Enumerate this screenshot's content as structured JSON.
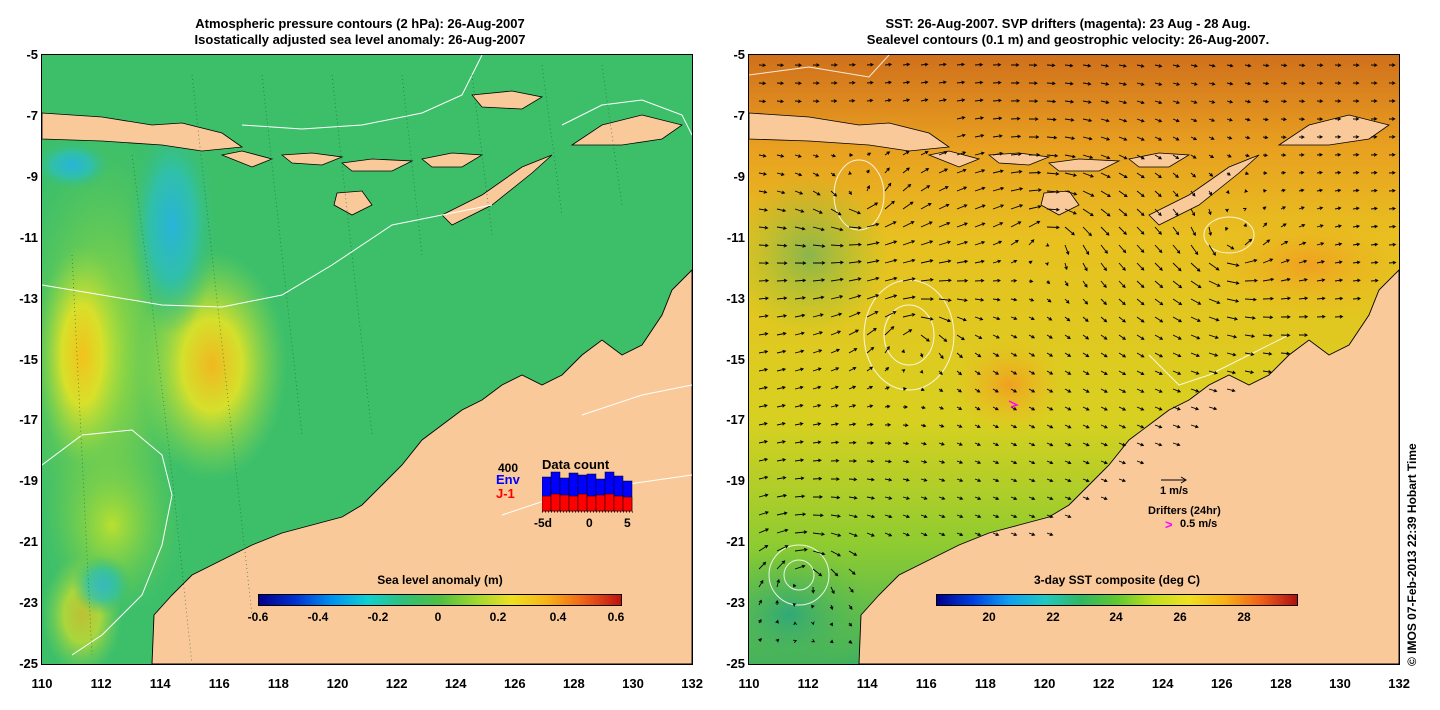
{
  "left_panel": {
    "title_line1": "Atmospheric pressure contours (2 hPa): 26-Aug-2007",
    "title_line2": "Isostatically adjusted sea level anomaly: 26-Aug-2007",
    "y_ticks": [
      "-5",
      "-7",
      "-9",
      "-11",
      "-13",
      "-15",
      "-17",
      "-19",
      "-21",
      "-23",
      "-25"
    ],
    "x_ticks": [
      "110",
      "112",
      "114",
      "116",
      "118",
      "120",
      "122",
      "124",
      "126",
      "128",
      "130",
      "132"
    ],
    "colorbar": {
      "label": "Sea level anomaly (m)",
      "ticks": [
        "-0.6",
        "-0.4",
        "-0.2",
        "0",
        "0.2",
        "0.4",
        "0.6"
      ]
    },
    "data_count": {
      "title": "Data count",
      "max_label": "400",
      "env_label": "Env",
      "j1_label": "J-1",
      "x_ticks": [
        "-5d",
        "0",
        "5"
      ],
      "env_values": [
        340,
        390,
        330,
        380,
        360,
        370,
        320,
        390,
        350,
        300
      ],
      "j1_values": [
        150,
        170,
        160,
        150,
        170,
        150,
        160,
        170,
        150,
        140
      ],
      "colors": {
        "env": "#0000ff",
        "j1": "#ff0000"
      }
    }
  },
  "right_panel": {
    "title_line1": "SST: 26-Aug-2007. SVP drifters (magenta): 23 Aug - 28 Aug.",
    "title_line2": "Sealevel contours (0.1 m) and geostrophic velocity: 26-Aug-2007.",
    "y_ticks": [
      "-5",
      "-7",
      "-9",
      "-11",
      "-13",
      "-15",
      "-17",
      "-19",
      "-21",
      "-23",
      "-25"
    ],
    "x_ticks": [
      "110",
      "112",
      "114",
      "116",
      "118",
      "120",
      "122",
      "124",
      "126",
      "128",
      "130",
      "132"
    ],
    "colorbar": {
      "label": "3-day SST composite (deg C)",
      "ticks": [
        "20",
        "22",
        "24",
        "26",
        "28"
      ]
    },
    "velocity_legend": {
      "speed_label": "1 m/s",
      "drifters_label": "Drifters (24hr)",
      "drifter_symbol": ">",
      "drifter_speed": "0.5 m/s"
    }
  },
  "credit": "© IMOS 07-Feb-2013 22:39 Hobart Time",
  "colors": {
    "land": "#f9c99a",
    "sla_ocean": "#3dbf6a",
    "sst_ocean": "#e6b020",
    "drifter": "#ff00ff"
  }
}
